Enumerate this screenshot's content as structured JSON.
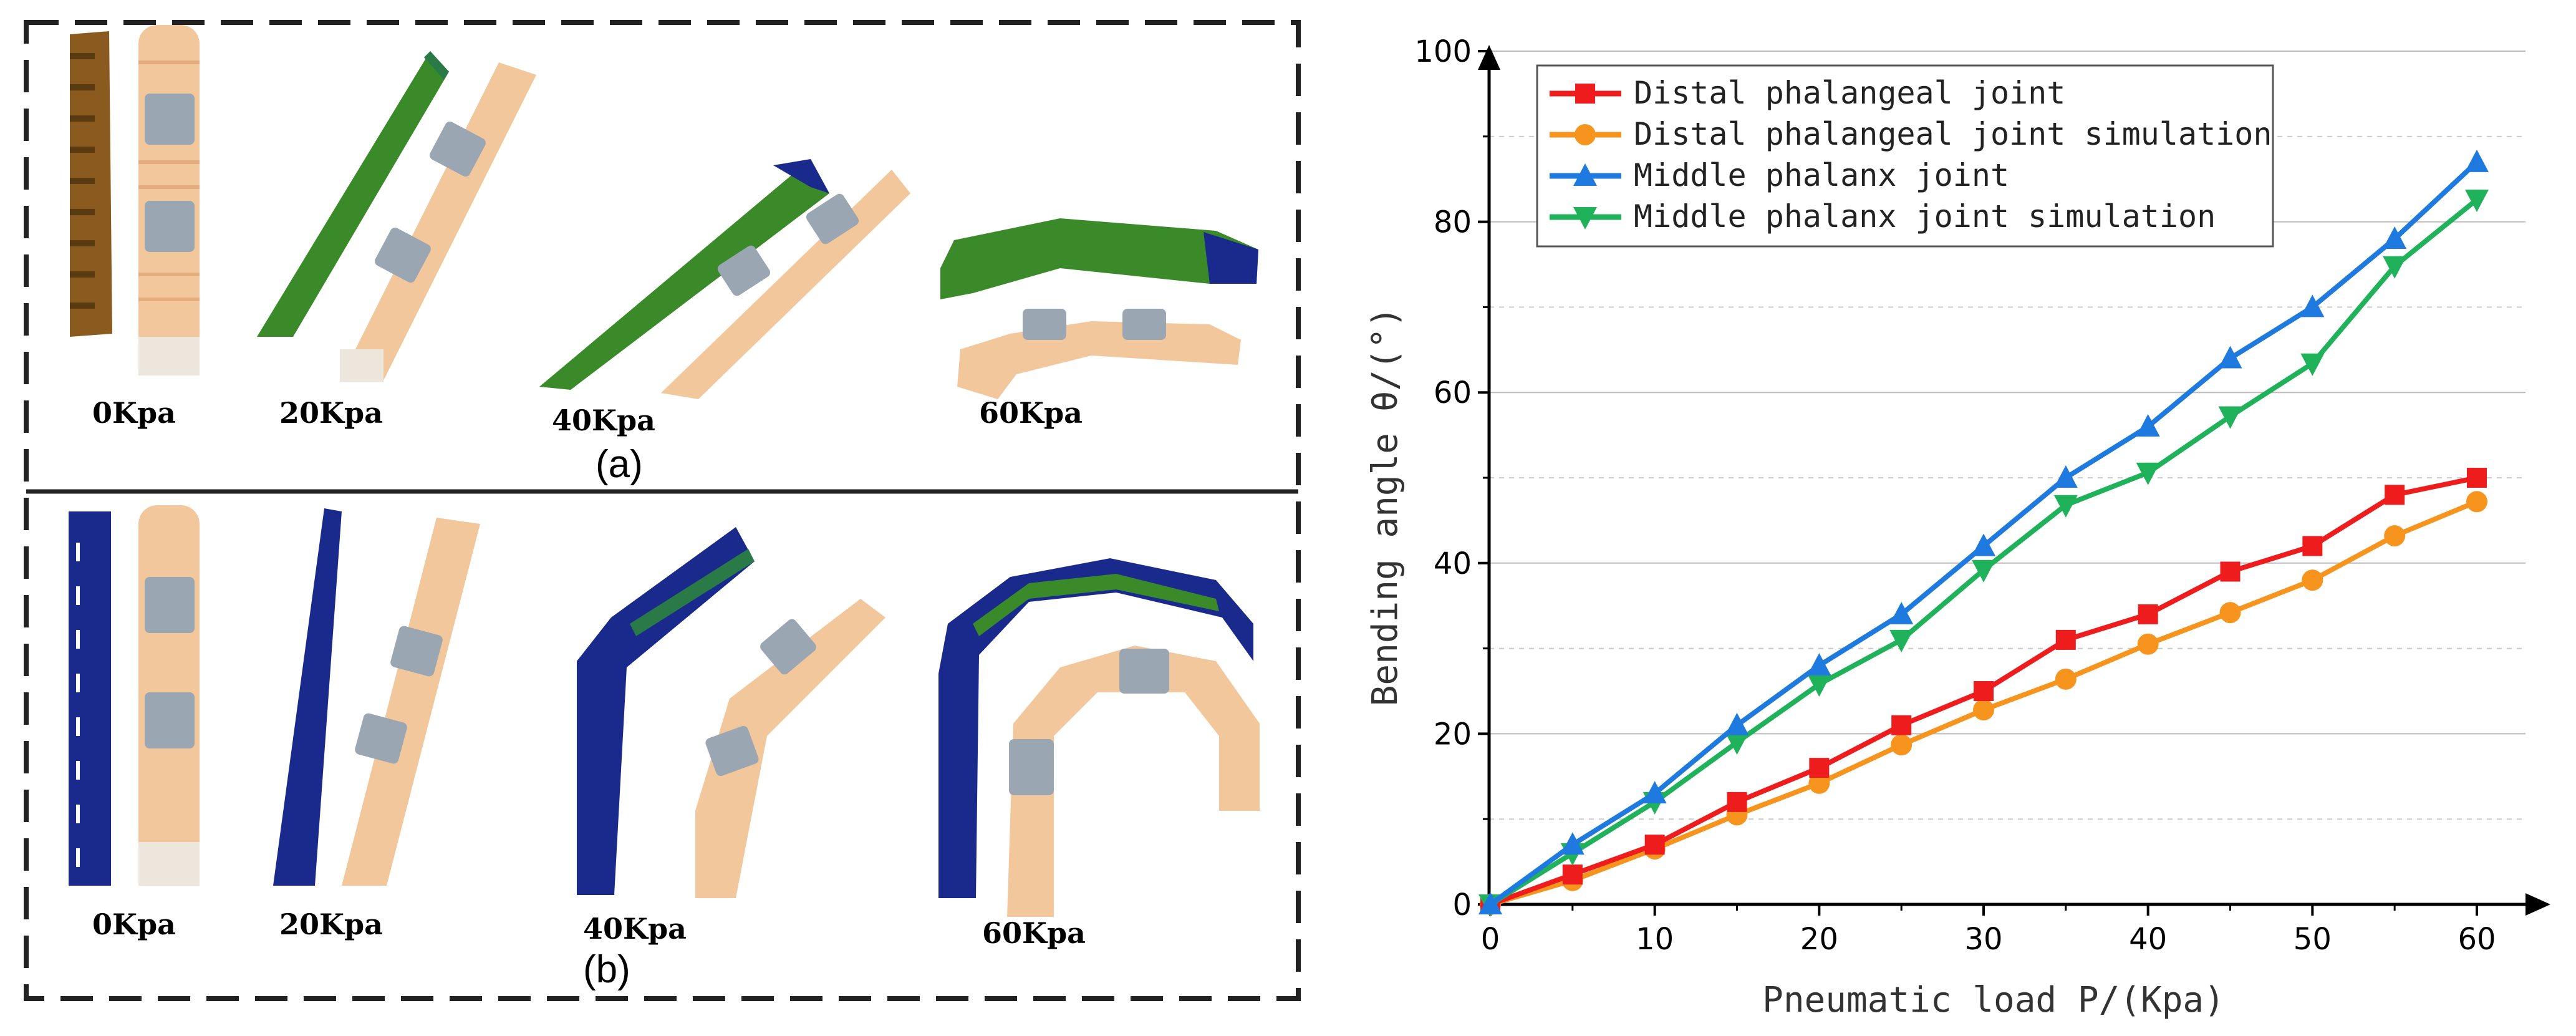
{
  "figure": {
    "panel_a_label": "(a)",
    "panel_b_label": "(b)",
    "panel_a_pressures": [
      "0Kpa",
      "20Kpa",
      "40Kpa",
      "60Kpa"
    ],
    "panel_b_pressures": [
      "0Kpa",
      "20Kpa",
      "40Kpa",
      "60Kpa"
    ]
  },
  "colors": {
    "distal": "#ee1c1c",
    "distal_sim": "#f7941d",
    "middle": "#1f7ae0",
    "middle_sim": "#1fb25a",
    "sim_brown": "#8a5a1e",
    "sim_green": "#3a8a2a",
    "sim_blue": "#1a2a8c",
    "finger": "#f3c79c",
    "clip": "#9aa6b2"
  },
  "chart_data": {
    "type": "line",
    "title": "",
    "xlabel": "Pneumatic load P/(Kpa)",
    "ylabel": "Bending angle θ/(°)",
    "xlim": [
      0,
      65
    ],
    "ylim": [
      0,
      100
    ],
    "xticks": [
      0,
      10,
      20,
      30,
      40,
      50,
      60
    ],
    "yticks": [
      0,
      20,
      40,
      60,
      80,
      100
    ],
    "x": [
      0,
      5,
      10,
      15,
      20,
      25,
      30,
      35,
      40,
      45,
      50,
      55,
      60
    ],
    "legend_position": "top-left",
    "series": [
      {
        "name": "Distal phalangeal joint",
        "marker": "square",
        "color": "#ee1c1c",
        "values": [
          0,
          3.5,
          7,
          12,
          16,
          21,
          25,
          31,
          34,
          39,
          42,
          48,
          50
        ]
      },
      {
        "name": "Distal phalangeal joint simulation",
        "marker": "circle",
        "color": "#f7941d",
        "values": [
          0,
          2.8,
          6.5,
          10.5,
          14.2,
          18.7,
          22.8,
          26.4,
          30.5,
          34.2,
          38,
          43.2,
          47.2
        ]
      },
      {
        "name": "Middle phalanx joint",
        "marker": "triangle-up",
        "color": "#1f7ae0",
        "values": [
          0,
          7,
          13,
          21,
          28,
          34,
          42,
          50,
          56,
          64,
          70,
          78,
          87
        ]
      },
      {
        "name": "Middle phalanx joint simulation",
        "marker": "triangle-down",
        "color": "#1fb25a",
        "values": [
          0,
          6,
          12,
          19,
          25.8,
          31,
          39.2,
          46.8,
          50.6,
          57.2,
          63.4,
          74.8,
          82.6
        ]
      }
    ]
  }
}
